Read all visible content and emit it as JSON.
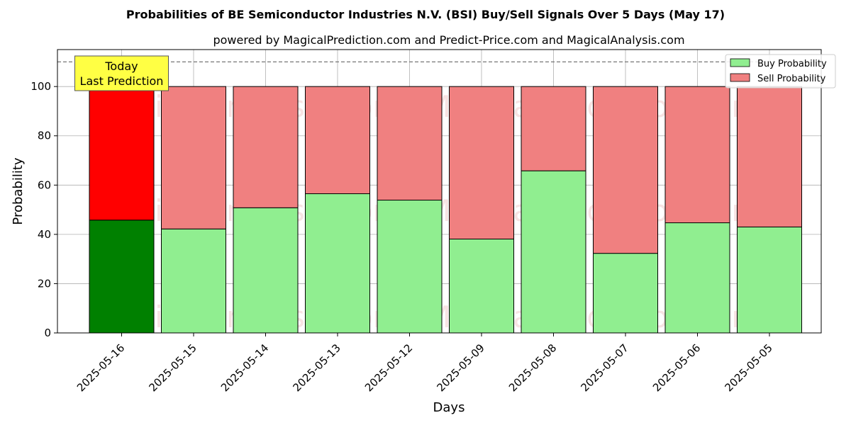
{
  "chart_data": {
    "type": "bar",
    "stacked": true,
    "title": "Probabilities of BE Semiconductor Industries N.V. (BSI) Buy/Sell Signals Over 5 Days (May 17)",
    "subtitle": "powered by MagicalPrediction.com and Predict-Price.com and MagicalAnalysis.com",
    "xlabel": "Days",
    "ylabel": "Probability",
    "ylim": [
      0,
      115
    ],
    "yticks": [
      0,
      20,
      40,
      60,
      80,
      100
    ],
    "grid": true,
    "legend_position": "top-right",
    "threshold_line": 110,
    "categories": [
      "2025-05-16",
      "2025-05-15",
      "2025-05-14",
      "2025-05-13",
      "2025-05-12",
      "2025-05-09",
      "2025-05-08",
      "2025-05-07",
      "2025-05-06",
      "2025-05-05"
    ],
    "series": [
      {
        "name": "Buy Probability",
        "color": "#90ee90",
        "highlight_color": "#008000",
        "values": [
          45.8,
          42.2,
          50.8,
          56.5,
          53.9,
          38.1,
          65.8,
          32.3,
          44.7,
          43.0
        ]
      },
      {
        "name": "Sell Probability",
        "color": "#f08080",
        "highlight_color": "#ff0000",
        "values": [
          54.2,
          57.8,
          49.2,
          43.5,
          46.1,
          61.9,
          34.2,
          67.7,
          55.3,
          57.0
        ]
      }
    ],
    "annotation": {
      "lines": [
        "Today",
        "Last Prediction"
      ],
      "category_index": 0,
      "background": "#ffff44"
    },
    "watermarks": [
      "MagicalAnalysis.com",
      "MagicalPrediction.com"
    ]
  }
}
